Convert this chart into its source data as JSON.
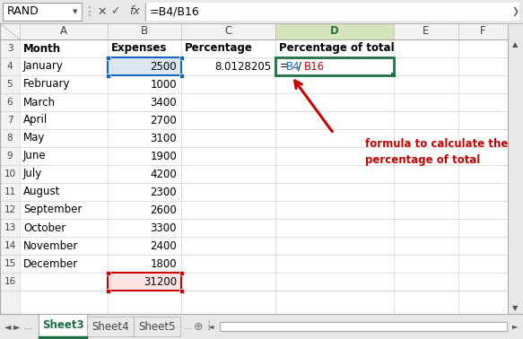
{
  "formula_bar_name": "RAND",
  "formula_bar_formula": "=B4/B16",
  "col_headers": [
    "A",
    "B",
    "C",
    "D",
    "E",
    "F"
  ],
  "rows": [
    {
      "row": 3,
      "A": "Month",
      "B": "Expenses",
      "C": "Percentage",
      "D": "Percentage of total",
      "bold": true
    },
    {
      "row": 4,
      "A": "January",
      "B": "2500",
      "C": "8.0128205",
      "D": "=B4/B16",
      "bold": false
    },
    {
      "row": 5,
      "A": "February",
      "B": "1000",
      "C": "",
      "D": "",
      "bold": false
    },
    {
      "row": 6,
      "A": "March",
      "B": "3400",
      "C": "",
      "D": "",
      "bold": false
    },
    {
      "row": 7,
      "A": "April",
      "B": "2700",
      "C": "",
      "D": "",
      "bold": false
    },
    {
      "row": 8,
      "A": "May",
      "B": "3100",
      "C": "",
      "D": "",
      "bold": false
    },
    {
      "row": 9,
      "A": "June",
      "B": "1900",
      "C": "",
      "D": "",
      "bold": false
    },
    {
      "row": 10,
      "A": "July",
      "B": "4200",
      "C": "",
      "D": "",
      "bold": false
    },
    {
      "row": 11,
      "A": "August",
      "B": "2300",
      "C": "",
      "D": "",
      "bold": false
    },
    {
      "row": 12,
      "A": "September",
      "B": "2600",
      "C": "",
      "D": "",
      "bold": false
    },
    {
      "row": 13,
      "A": "October",
      "B": "3300",
      "C": "",
      "D": "",
      "bold": false
    },
    {
      "row": 14,
      "A": "November",
      "B": "2400",
      "C": "",
      "D": "",
      "bold": false
    },
    {
      "row": 15,
      "A": "December",
      "B": "1800",
      "C": "",
      "D": "",
      "bold": false
    },
    {
      "row": 16,
      "A": "",
      "B": "31200",
      "C": "",
      "D": "",
      "bold": false
    }
  ],
  "annotation_text_line1": "formula to calculate the",
  "annotation_text_line2": "percentage of total",
  "annotation_color": "#cc0000",
  "sheet_tabs": [
    "Sheet3",
    "Sheet4",
    "Sheet5"
  ],
  "active_sheet": "Sheet3",
  "grid_color": "#d0d0d0",
  "header_bg": "#f2f2f2",
  "outer_bg": "#e8e8e8",
  "col_header_active_bg": "#d6e4bc",
  "col_header_active_color": "#1f7145",
  "selected_B4_bg": "#dce6f1",
  "selected_B4_border": "#1565c0",
  "selected_D4_border": "#1f7145",
  "selected_B16_bg": "#fce4e4",
  "selected_B16_border": "#cc0000",
  "active_tab_color": "#1f7145",
  "formula_eq_color": "#000000",
  "formula_B4_color": "#1565c0",
  "formula_slash_color": "#000000",
  "formula_B16_color": "#cc0000"
}
